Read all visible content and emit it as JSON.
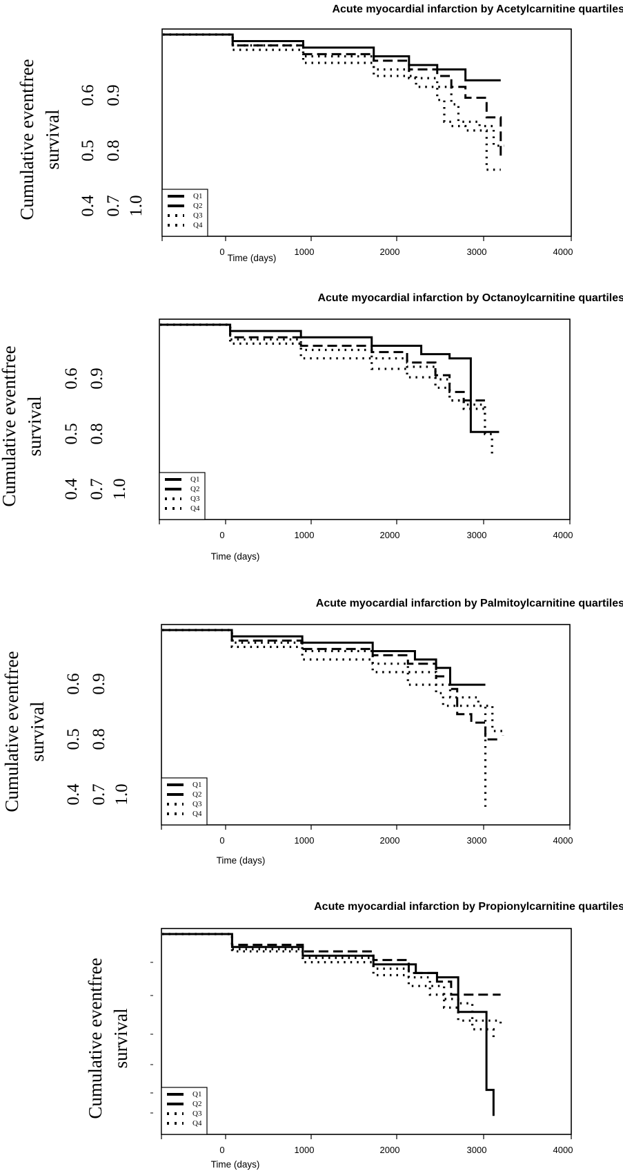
{
  "legend_labels": [
    "Q1",
    "Q2",
    "Q3",
    "Q4"
  ],
  "line_color": "#000000",
  "chart_data": [
    {
      "type": "line",
      "title": "Acute myocardial infarction by Acetylcarnitine quartiles",
      "xlabel": "Time (days)",
      "ylabel_lines": [
        "Cumulative eventfree",
        "survival"
      ],
      "y_tick_rows": [
        [
          "0.4",
          "0.5",
          "0.6"
        ],
        [
          "0.7",
          "0.8",
          "0.9"
        ],
        [
          "1.0"
        ]
      ],
      "x_ticks": [
        "0",
        "1000",
        "2000",
        "3000",
        "4000"
      ],
      "xlim": [
        -1000,
        4800
      ],
      "ylim": [
        0.55,
        1.0
      ],
      "legend_position": "bottom-left",
      "series": [
        {
          "name": "Q1",
          "dash": "solid",
          "x": [
            -1000,
            0,
            1000,
            2000,
            2500,
            2900,
            3300,
            3300,
            3800
          ],
          "y": [
            1.0,
            0.985,
            0.97,
            0.95,
            0.93,
            0.92,
            0.92,
            0.895,
            0.895
          ]
        },
        {
          "name": "Q2",
          "dash": "dash",
          "x": [
            -1000,
            0,
            1000,
            2000,
            2500,
            2900,
            3100,
            3300,
            3400,
            3600,
            3800
          ],
          "y": [
            1.0,
            0.975,
            0.955,
            0.94,
            0.92,
            0.905,
            0.88,
            0.855,
            0.855,
            0.81,
            0.72
          ]
        },
        {
          "name": "Q3",
          "dash": "dot",
          "x": [
            -1000,
            0,
            1000,
            2000,
            2500,
            2900,
            3100,
            3200,
            3500,
            3700,
            3850
          ],
          "y": [
            1.0,
            0.975,
            0.95,
            0.92,
            0.9,
            0.88,
            0.84,
            0.8,
            0.79,
            0.745,
            0.745
          ]
        },
        {
          "name": "Q4",
          "dash": "dot",
          "x": [
            -1000,
            0,
            1000,
            2000,
            2600,
            2900,
            3000,
            3100,
            3300,
            3600,
            3800
          ],
          "y": [
            1.0,
            0.965,
            0.935,
            0.905,
            0.88,
            0.85,
            0.8,
            0.79,
            0.78,
            0.69,
            0.69
          ]
        }
      ]
    },
    {
      "type": "line",
      "title": "Acute myocardial infarction by Octanoylcarnitine quartiles",
      "xlabel": "Time (days)",
      "ylabel_lines": [
        "Cumulative eventfree",
        "survival"
      ],
      "y_tick_rows": [
        [
          "0.4",
          "0.5",
          "0.6"
        ],
        [
          "0.7",
          "0.8",
          "0.9"
        ],
        [
          "1.0"
        ]
      ],
      "x_ticks": [
        "0",
        "1000",
        "2000",
        "3000",
        "4000"
      ],
      "xlim": [
        -1000,
        4800
      ],
      "ylim": [
        0.55,
        1.0
      ],
      "legend_position": "bottom-left",
      "series": [
        {
          "name": "Q1",
          "dash": "solid",
          "x": [
            -1000,
            0,
            1000,
            2000,
            2700,
            3100,
            3400,
            3400,
            3800
          ],
          "y": [
            1.0,
            0.985,
            0.97,
            0.95,
            0.93,
            0.92,
            0.92,
            0.745,
            0.745
          ]
        },
        {
          "name": "Q2",
          "dash": "dash",
          "x": [
            -1000,
            0,
            1000,
            2000,
            2500,
            2900,
            3100,
            3300,
            3600
          ],
          "y": [
            1.0,
            0.97,
            0.95,
            0.935,
            0.91,
            0.88,
            0.84,
            0.82,
            0.82
          ]
        },
        {
          "name": "Q3",
          "dash": "dot",
          "x": [
            -1000,
            0,
            1000,
            2000,
            2500,
            2900,
            3100,
            3300,
            3600,
            3700
          ],
          "y": [
            1.0,
            0.965,
            0.94,
            0.92,
            0.9,
            0.87,
            0.82,
            0.81,
            0.74,
            0.69
          ]
        },
        {
          "name": "Q4",
          "dash": "dot",
          "x": [
            -1000,
            0,
            1000,
            2000,
            2500,
            2900,
            3100,
            3300,
            3600
          ],
          "y": [
            1.0,
            0.955,
            0.92,
            0.895,
            0.875,
            0.85,
            0.82,
            0.8,
            0.78
          ]
        }
      ]
    },
    {
      "type": "line",
      "title": "Acute myocardial infarction by Palmitoylcarnitine quartiles",
      "xlabel": "Time (days)",
      "ylabel_lines": [
        "Cumulative eventfree",
        "survival"
      ],
      "y_tick_rows": [
        [
          "0.4",
          "0.5",
          "0.6"
        ],
        [
          "0.7",
          "0.8",
          "0.9"
        ],
        [
          "1.0"
        ]
      ],
      "x_ticks": [
        "0",
        "1000",
        "2000",
        "3000",
        "4000"
      ],
      "xlim": [
        -1000,
        4800
      ],
      "ylim": [
        0.55,
        1.0
      ],
      "legend_position": "bottom-left",
      "series": [
        {
          "name": "Q1",
          "dash": "solid",
          "x": [
            -1000,
            0,
            1000,
            2000,
            2600,
            2900,
            3100,
            3100,
            3600
          ],
          "y": [
            1.0,
            0.985,
            0.97,
            0.95,
            0.93,
            0.91,
            0.91,
            0.87,
            0.87
          ]
        },
        {
          "name": "Q2",
          "dash": "dash",
          "x": [
            -1000,
            0,
            1000,
            2000,
            2500,
            2900,
            3100,
            3200,
            3400,
            3600,
            3800
          ],
          "y": [
            1.0,
            0.975,
            0.955,
            0.94,
            0.92,
            0.89,
            0.86,
            0.8,
            0.78,
            0.74,
            0.74
          ]
        },
        {
          "name": "Q3",
          "dash": "dot",
          "x": [
            -1000,
            0,
            1000,
            2000,
            2500,
            2900,
            3100,
            3500,
            3700,
            3850
          ],
          "y": [
            1.0,
            0.97,
            0.95,
            0.92,
            0.9,
            0.87,
            0.84,
            0.82,
            0.76,
            0.75
          ]
        },
        {
          "name": "Q4",
          "dash": "dot",
          "x": [
            -1000,
            0,
            1000,
            2000,
            2500,
            2900,
            3000,
            3200,
            3600,
            3600
          ],
          "y": [
            1.0,
            0.96,
            0.93,
            0.9,
            0.87,
            0.85,
            0.82,
            0.82,
            0.82,
            0.58
          ]
        }
      ]
    },
    {
      "type": "line",
      "title": "Acute myocardial infarction by Propionylcarnitine quartiles",
      "xlabel": "Time (days)",
      "ylabel_lines": [
        "Cumulative eventfree",
        "survival"
      ],
      "y_tick_rows": [],
      "x_ticks": [
        "0",
        "1000",
        "2000",
        "3000",
        "4000"
      ],
      "xlim": [
        -1000,
        4800
      ],
      "ylim": [
        0.55,
        1.0
      ],
      "legend_position": "bottom-left",
      "series": [
        {
          "name": "Q1",
          "dash": "solid",
          "x": [
            -1000,
            0,
            1000,
            2000,
            2600,
            2900,
            3100,
            3200,
            3500,
            3600,
            3700
          ],
          "y": [
            1.0,
            0.97,
            0.95,
            0.93,
            0.91,
            0.9,
            0.9,
            0.82,
            0.82,
            0.64,
            0.58
          ]
        },
        {
          "name": "Q2",
          "dash": "dash",
          "x": [
            -1000,
            0,
            1000,
            2000,
            2500,
            2900,
            3100,
            3800
          ],
          "y": [
            1.0,
            0.975,
            0.96,
            0.94,
            0.91,
            0.89,
            0.86,
            0.86
          ]
        },
        {
          "name": "Q3",
          "dash": "dot",
          "x": [
            -1000,
            0,
            1000,
            2000,
            2500,
            2800,
            3000,
            3200,
            3400,
            3600,
            3800
          ],
          "y": [
            1.0,
            0.965,
            0.945,
            0.92,
            0.9,
            0.88,
            0.85,
            0.84,
            0.8,
            0.8,
            0.79
          ]
        },
        {
          "name": "Q4",
          "dash": "dot",
          "x": [
            -1000,
            0,
            1000,
            2000,
            2500,
            2800,
            3000,
            3200,
            3400,
            3700
          ],
          "y": [
            1.0,
            0.96,
            0.935,
            0.905,
            0.88,
            0.86,
            0.83,
            0.8,
            0.78,
            0.76
          ]
        }
      ]
    }
  ]
}
